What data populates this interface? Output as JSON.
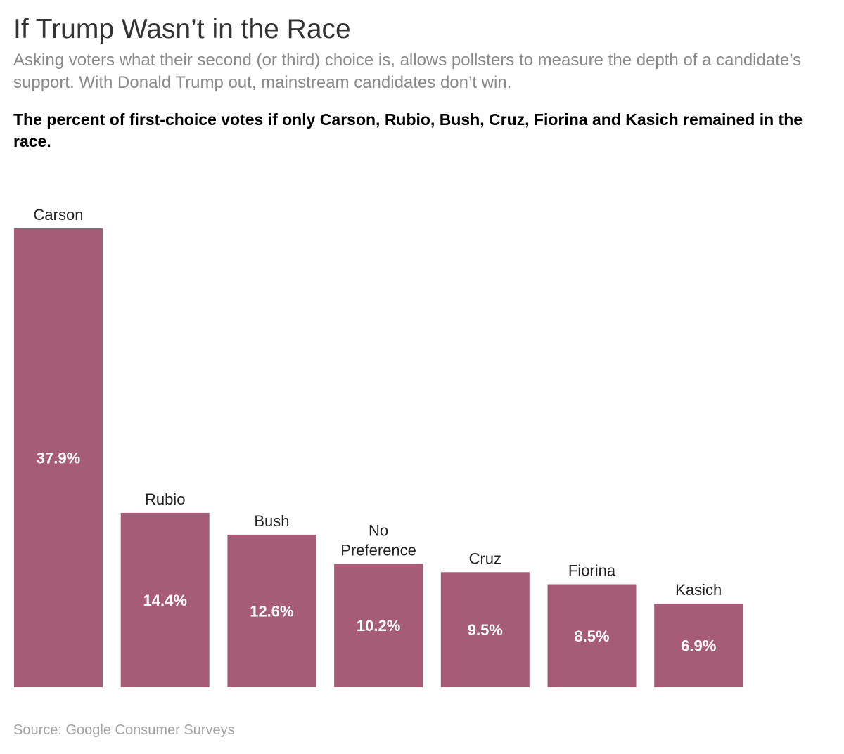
{
  "header": {
    "title": "If Trump Wasn’t in the Race",
    "subtitle": "Asking voters what their second (or third) choice is, allows pollsters to measure the depth of a candidate’s support. With Donald Trump out, mainstream candidates don’t win.",
    "chart_heading": "The percent of first-choice votes if only Carson, Rubio, Bush, Cruz, Fiorina and Kasich remained in the race."
  },
  "footer": {
    "source": "Source: Google Consumer Surveys"
  },
  "chart_data": {
    "type": "bar",
    "title": "The percent of first-choice votes if only Carson, Rubio, Bush, Cruz, Fiorina and Kasich remained in the race.",
    "categories": [
      "Carson",
      "Rubio",
      "Bush",
      "No Preference",
      "Cruz",
      "Fiorina",
      "Kasich"
    ],
    "category_lines": [
      [
        "Carson"
      ],
      [
        "Rubio"
      ],
      [
        "Bush"
      ],
      [
        "No",
        "Preference"
      ],
      [
        "Cruz"
      ],
      [
        "Fiorina"
      ],
      [
        "Kasich"
      ]
    ],
    "values": [
      37.9,
      14.4,
      12.6,
      10.2,
      9.5,
      8.5,
      6.9
    ],
    "value_labels": [
      "37.9%",
      "14.4%",
      "12.6%",
      "10.2%",
      "9.5%",
      "8.5%",
      "6.9%"
    ],
    "unit": "%",
    "bar_color": "#a65b76",
    "ylim": [
      0,
      37.9
    ],
    "grid": false,
    "legend": "none"
  }
}
